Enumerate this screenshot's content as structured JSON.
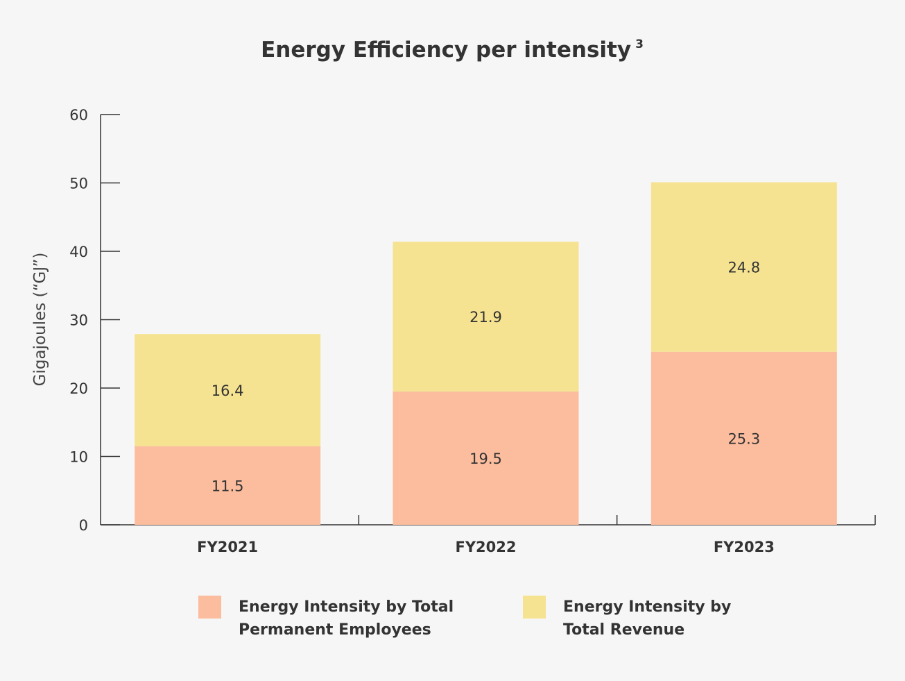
{
  "chart_data": {
    "type": "bar",
    "stacked": true,
    "title": "Energy Efficiency per intensity",
    "title_superscript": "3",
    "ylabel": "Gigajoules (“GJ”)",
    "xlabel": "",
    "ylim": [
      0,
      60
    ],
    "yticks": [
      0,
      10,
      20,
      30,
      40,
      50,
      60
    ],
    "categories": [
      "FY2021",
      "FY2022",
      "FY2023"
    ],
    "series": [
      {
        "name": "Energy Intensity by Total Permanent Employees",
        "values": [
          11.5,
          19.5,
          25.3
        ],
        "color": "#fbbd9e"
      },
      {
        "name": "Energy Intensity by Total Revenue",
        "values": [
          16.4,
          21.9,
          24.8
        ],
        "color": "#f5e391"
      }
    ],
    "value_labels": [
      [
        "11.5",
        "19.5",
        "25.3"
      ],
      [
        "16.4",
        "21.9",
        "24.8"
      ]
    ],
    "grid": false,
    "legend_position": "bottom"
  },
  "legend": {
    "items": [
      {
        "label": "Energy Intensity by Total\nPermanent Employees",
        "color": "#fbbd9e"
      },
      {
        "label": "Energy Intensity by\nTotal Revenue",
        "color": "#f5e391"
      }
    ]
  }
}
